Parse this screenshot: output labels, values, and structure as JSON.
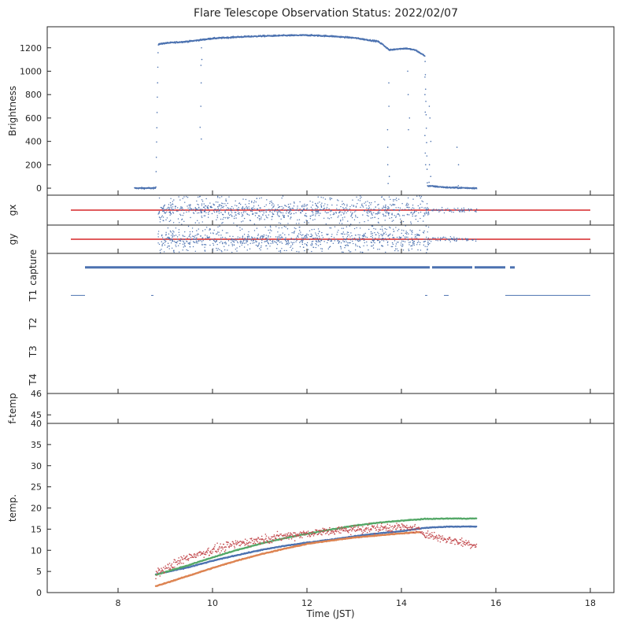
{
  "chart_data": {
    "type": "scatter",
    "title": "Flare Telescope Observation Status: 2022/02/07",
    "xlabel": "Time (JST)",
    "xlim": [
      6.5,
      18.5
    ],
    "xticks": [
      "8",
      "10",
      "12",
      "14",
      "16",
      "18"
    ],
    "xtick_values": [
      8,
      10,
      12,
      14,
      16,
      18
    ],
    "colors": {
      "blue": "#4c72b0",
      "orange": "#dd8452",
      "green": "#55a868",
      "red": "#c44e52",
      "line_red": "#d62728",
      "axis": "#262626"
    },
    "panels": [
      {
        "key": "brightness",
        "ylabel": "Brightness",
        "ylim": [
          -60,
          1380
        ],
        "yticks": [
          "0",
          "200",
          "400",
          "600",
          "800",
          "1000",
          "1200"
        ],
        "ytick_values": [
          0,
          200,
          400,
          600,
          800,
          1000,
          1200
        ],
        "series": [
          {
            "color": "blue",
            "curve": [
              [
                8.35,
                0
              ],
              [
                8.8,
                0
              ],
              [
                8.85,
                1230
              ],
              [
                9.0,
                1240
              ],
              [
                9.5,
                1255
              ],
              [
                10.0,
                1280
              ],
              [
                10.5,
                1292
              ],
              [
                11.0,
                1300
              ],
              [
                11.5,
                1305
              ],
              [
                12.0,
                1308
              ],
              [
                12.5,
                1300
              ],
              [
                13.0,
                1285
              ],
              [
                13.5,
                1255
              ],
              [
                13.6,
                1230
              ],
              [
                13.75,
                1180
              ],
              [
                13.9,
                1190
              ],
              [
                14.1,
                1195
              ],
              [
                14.3,
                1180
              ],
              [
                14.5,
                1130
              ],
              [
                14.55,
                20
              ],
              [
                15.0,
                5
              ],
              [
                15.6,
                0
              ]
            ],
            "dropouts": [
              {
                "x": 9.75,
                "values": [
                  1200,
                  1100,
                  1050,
                  900,
                  700,
                  520,
                  420
                ]
              },
              {
                "x": 13.72,
                "values": [
                  900,
                  700,
                  500,
                  350,
                  200,
                  100,
                  40
                ]
              },
              {
                "x": 14.15,
                "values": [
                  1000,
                  800,
                  600,
                  500
                ]
              },
              {
                "x": 14.5,
                "values": [
                  950,
                  800,
                  650,
                  450,
                  300,
                  200
                ]
              },
              {
                "x": 14.6,
                "values": [
                  700,
                  600,
                  400,
                  200,
                  100,
                  50
                ]
              },
              {
                "x": 15.2,
                "values": [
                  350,
                  200,
                  20
                ]
              }
            ]
          }
        ]
      },
      {
        "key": "gx",
        "ylabel": "gx",
        "ylim": [
          -1,
          1
        ],
        "yticks": [],
        "reference_line": {
          "color": "line_red",
          "y": 0,
          "x": [
            7.0,
            18.0
          ]
        },
        "scatter_band": {
          "color": "blue",
          "x": [
            8.85,
            15.6
          ],
          "dense_x": [
            8.85,
            14.6
          ],
          "spread": 0.95
        }
      },
      {
        "key": "gy",
        "ylabel": "gy",
        "ylim": [
          -1,
          1
        ],
        "yticks": [],
        "reference_line": {
          "color": "line_red",
          "y": 0,
          "x": [
            7.0,
            18.0
          ]
        },
        "scatter_band": {
          "color": "blue",
          "x": [
            8.85,
            15.6
          ],
          "dense_x": [
            8.85,
            14.6
          ],
          "spread": 0.95
        }
      },
      {
        "key": "status",
        "ylabel_rows": [
          "capture",
          "T1",
          "T2",
          "T3",
          "T4"
        ],
        "ylim": [
          -0.5,
          4.5
        ],
        "yticks": [],
        "segments": [
          {
            "row": "capture",
            "color": "blue",
            "ranges": [
              [
                7.3,
                14.6
              ],
              [
                14.65,
                15.5
              ],
              [
                15.55,
                16.2
              ],
              [
                16.3,
                16.4
              ]
            ]
          },
          {
            "row": "T1",
            "color": "blue",
            "ranges": [
              [
                7.0,
                7.3
              ],
              [
                8.7,
                8.75
              ],
              [
                14.5,
                14.55
              ],
              [
                14.9,
                15.0
              ],
              [
                16.2,
                18.0
              ]
            ]
          }
        ]
      },
      {
        "key": "f-temp",
        "ylabel": "f-temp",
        "ylim": [
          44.6,
          46.0
        ],
        "yticks": [
          "45",
          "46"
        ],
        "ytick_values": [
          45,
          46
        ]
      },
      {
        "key": "temp",
        "ylabel": "temp.",
        "ylim": [
          0,
          40
        ],
        "yticks": [
          "0",
          "5",
          "10",
          "15",
          "20",
          "25",
          "30",
          "35",
          "40"
        ],
        "ytick_values": [
          0,
          5,
          10,
          15,
          20,
          25,
          30,
          35,
          40
        ],
        "series": [
          {
            "color": "blue",
            "x": [
              8.8,
              9.5,
              10.0,
              10.5,
              11.0,
              11.5,
              12.0,
              12.5,
              13.0,
              13.5,
              14.0,
              14.5,
              15.0,
              15.6
            ],
            "y": [
              4.3,
              6.0,
              7.5,
              8.8,
              10.0,
              11.0,
              11.8,
              12.5,
              13.3,
              14.0,
              14.5,
              15.3,
              15.6,
              15.6
            ]
          },
          {
            "color": "orange",
            "x": [
              8.8,
              9.5,
              10.0,
              10.5,
              11.0,
              11.5,
              12.0,
              12.5,
              13.0,
              13.5,
              14.0,
              14.4
            ],
            "y": [
              1.5,
              4.0,
              5.8,
              7.5,
              9.0,
              10.3,
              11.5,
              12.3,
              13.0,
              13.5,
              14.0,
              14.3
            ]
          },
          {
            "color": "green",
            "x": [
              8.8,
              9.5,
              10.0,
              10.5,
              11.0,
              11.5,
              12.0,
              12.5,
              13.0,
              13.5,
              14.0,
              14.5,
              15.0,
              15.6
            ],
            "y": [
              4.2,
              6.5,
              8.3,
              10.0,
              11.5,
              12.8,
              13.9,
              14.9,
              15.8,
              16.5,
              17.0,
              17.4,
              17.5,
              17.5
            ]
          },
          {
            "color": "red",
            "noise": 1.0,
            "x": [
              8.8,
              9.5,
              10.0,
              10.5,
              11.0,
              11.5,
              12.0,
              12.5,
              13.0,
              13.5,
              14.0,
              14.3,
              14.6,
              15.0,
              15.6
            ],
            "y": [
              4.5,
              8.5,
              10.0,
              11.5,
              12.5,
              13.3,
              14.0,
              14.5,
              15.0,
              15.2,
              15.5,
              15.0,
              13.5,
              12.5,
              11.2
            ]
          }
        ]
      }
    ]
  }
}
